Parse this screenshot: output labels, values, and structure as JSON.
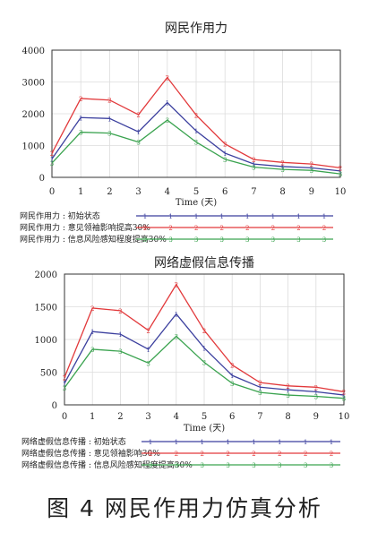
{
  "chart_data": [
    {
      "type": "line",
      "title": "网民作用力",
      "xlabel": "Time (天)",
      "ylabel": "",
      "x": [
        0,
        1,
        2,
        3,
        4,
        5,
        6,
        7,
        8,
        9,
        10
      ],
      "xticks": [
        "0",
        "1",
        "2",
        "3",
        "4",
        "5",
        "6",
        "7",
        "8",
        "9",
        "10"
      ],
      "yticks": [
        "0",
        "1000",
        "2000",
        "3000",
        "4000"
      ],
      "ylim": [
        0,
        4000
      ],
      "grid": true,
      "legend_position": "bottom-left",
      "series": [
        {
          "name": "网民作用力 : 初始状态",
          "marker": "1",
          "color": "#3b3f9e",
          "values": [
            580,
            1880,
            1850,
            1430,
            2350,
            1460,
            760,
            420,
            340,
            300,
            200
          ]
        },
        {
          "name": "网民作用力 : 意见领袖影响提高30%",
          "marker": "2",
          "color": "#e2393b",
          "values": [
            760,
            2480,
            2430,
            1970,
            3140,
            1960,
            1050,
            560,
            470,
            420,
            300
          ]
        },
        {
          "name": "网民作用力 : 信息风险感知程度提高30%",
          "marker": "3",
          "color": "#3aa34f",
          "values": [
            450,
            1420,
            1390,
            1110,
            1800,
            1110,
            570,
            320,
            250,
            220,
            110
          ]
        }
      ]
    },
    {
      "type": "line",
      "title": "网络虚假信息传播",
      "xlabel": "Time (天)",
      "ylabel": "",
      "x": [
        0,
        1,
        2,
        3,
        4,
        5,
        6,
        7,
        8,
        9,
        10
      ],
      "xticks": [
        "0",
        "1",
        "2",
        "3",
        "4",
        "5",
        "6",
        "7",
        "8",
        "9",
        "10"
      ],
      "yticks": [
        "0",
        "500",
        "1000",
        "1500",
        "2000"
      ],
      "ylim": [
        0,
        2000
      ],
      "grid": true,
      "legend_position": "bottom-left",
      "series": [
        {
          "name": "网络虚假信息传播 : 初始状态",
          "marker": "1",
          "color": "#3b3f9e",
          "values": [
            330,
            1120,
            1080,
            850,
            1390,
            870,
            450,
            270,
            230,
            200,
            150
          ]
        },
        {
          "name": "网络虚假信息传播 : 意见领袖影响30%",
          "marker": "2",
          "color": "#e2393b",
          "values": [
            420,
            1480,
            1440,
            1140,
            1840,
            1140,
            610,
            340,
            290,
            270,
            200
          ]
        },
        {
          "name": "网络虚假信息传播 : 信息风险感知程度提高30%",
          "marker": "3",
          "color": "#3aa34f",
          "values": [
            260,
            850,
            820,
            640,
            1050,
            650,
            330,
            190,
            150,
            130,
            100
          ]
        }
      ]
    }
  ],
  "caption": "图 4   网民作用力仿真分析"
}
